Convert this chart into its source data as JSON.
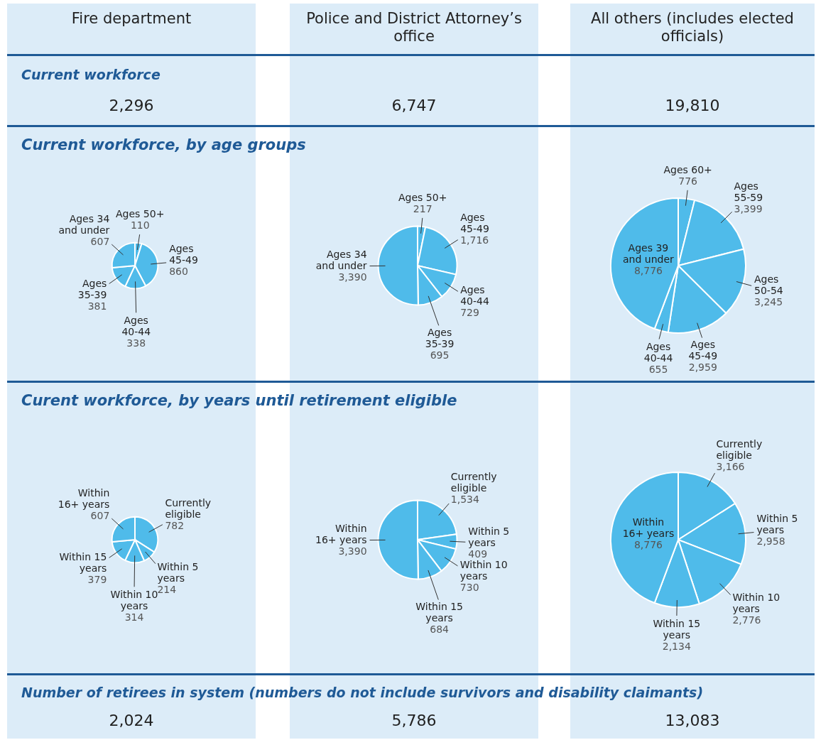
{
  "chart_data": [
    {
      "type": "other",
      "title": "Current workforce",
      "categories": [
        "Fire department",
        "Police and District Attorney’s office",
        "All others (includes elected officials)"
      ],
      "values": [
        2296,
        6747,
        19810
      ],
      "value_labels": [
        "2,296",
        "6,747",
        "19,810"
      ]
    },
    {
      "type": "pie",
      "title": "Current workforce, by age groups",
      "categories": [
        "Ages 50+",
        "Ages 45-49",
        "Ages 40-44",
        "Ages 35-39",
        "Ages 34 and under"
      ],
      "values": [
        110,
        860,
        338,
        381,
        607
      ],
      "colors": [
        "#4fbbea",
        "#4fbbea",
        "#4fbbea",
        "#4fbbea",
        "#4fbbea"
      ],
      "value_labels": [
        "110",
        "860",
        "338",
        "381",
        "607"
      ]
    },
    {
      "type": "pie",
      "categories": [
        "Ages 50+",
        "Ages 45-49",
        "Ages 40-44",
        "Ages 35-39",
        "Ages 34 and under"
      ],
      "values": [
        217,
        1716,
        729,
        695,
        3390
      ],
      "colors": [
        "#4fbbea",
        "#4fbbea",
        "#4fbbea",
        "#4fbbea",
        "#4fbbea"
      ],
      "value_labels": [
        "217",
        "1,716",
        "729",
        "695",
        "3,390"
      ]
    },
    {
      "type": "pie",
      "categories": [
        "Ages 60+",
        "Ages 55-59",
        "Ages 50-54",
        "Ages 45-49",
        "Ages 40-44",
        "Ages 39 and under"
      ],
      "values": [
        776,
        3399,
        3245,
        2959,
        655,
        8776
      ],
      "colors": [
        "#4fbbea",
        "#4fbbea",
        "#4fbbea",
        "#4fbbea",
        "#4fbbea",
        "#4fbbea"
      ],
      "value_labels": [
        "776",
        "3,399",
        "3,245",
        "2,959",
        "655",
        "8,776"
      ]
    },
    {
      "type": "pie",
      "title": "Curent workforce, by years until retirement eligible",
      "categories": [
        "Currently eligible",
        "Within 5 years",
        "Within 10 years",
        "Within 15 years",
        "Within 16+ years"
      ],
      "values": [
        782,
        214,
        314,
        379,
        607
      ],
      "colors": [
        "#4fbbea",
        "#4fbbea",
        "#4fbbea",
        "#4fbbea",
        "#4fbbea"
      ],
      "value_labels": [
        "782",
        "214",
        "314",
        "379",
        "607"
      ]
    },
    {
      "type": "pie",
      "categories": [
        "Currently eligible",
        "Within 5 years",
        "Within 10 years",
        "Within 15 years",
        "Within 16+ years"
      ],
      "values": [
        1534,
        409,
        730,
        684,
        3390
      ],
      "colors": [
        "#4fbbea",
        "#4fbbea",
        "#4fbbea",
        "#4fbbea",
        "#4fbbea"
      ],
      "value_labels": [
        "1,534",
        "409",
        "730",
        "684",
        "3,390"
      ]
    },
    {
      "type": "pie",
      "categories": [
        "Currently eligible",
        "Within 5 years",
        "Within 10 years",
        "Within 15 years",
        "Within 16+ years"
      ],
      "values": [
        3166,
        2958,
        2776,
        2134,
        8776
      ],
      "colors": [
        "#4fbbea",
        "#4fbbea",
        "#4fbbea",
        "#4fbbea",
        "#4fbbea"
      ],
      "value_labels": [
        "3,166",
        "2,958",
        "2,776",
        "2,134",
        "8,776"
      ]
    },
    {
      "type": "other",
      "title": "Number of retirees in system (numbers do not include survivors and disability claimants)",
      "categories": [
        null,
        null,
        null
      ],
      "values": [
        2024,
        5786,
        13083
      ],
      "value_labels": [
        "2,024",
        "5,786",
        "13,083"
      ]
    }
  ]
}
